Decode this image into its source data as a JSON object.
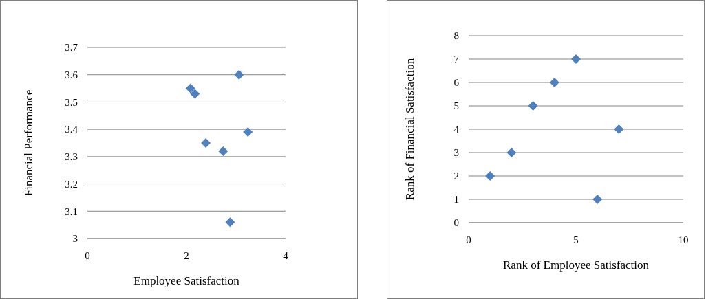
{
  "chart_data": [
    {
      "type": "scatter",
      "xlabel": "Employee Satisfaction",
      "ylabel": "Financial Performance",
      "x": [
        2.08,
        2.17,
        3.06,
        2.39,
        3.24,
        2.74,
        2.88
      ],
      "values": [
        3.55,
        3.53,
        3.6,
        3.35,
        3.39,
        3.32,
        3.06
      ],
      "color": "#4f81bd",
      "xlim": [
        0,
        4
      ],
      "xticks": [
        0,
        2,
        4
      ],
      "ylim": [
        3,
        3.7
      ],
      "yticks": [
        3,
        3.1,
        3.2,
        3.3,
        3.4,
        3.5,
        3.6,
        3.7
      ],
      "grid": "y",
      "marker": "diamond"
    },
    {
      "type": "scatter",
      "xlabel": "Rank of Employee Satisfaction",
      "ylabel": "Rank of Financial Satisfaction",
      "x": [
        1,
        2,
        3,
        4,
        5,
        6,
        7
      ],
      "values": [
        2,
        3,
        5,
        6,
        7,
        1,
        4
      ],
      "color": "#4f81bd",
      "xlim": [
        0,
        10
      ],
      "xticks": [
        0,
        5,
        10
      ],
      "ylim": [
        0,
        8
      ],
      "yticks": [
        0,
        1,
        2,
        3,
        4,
        5,
        6,
        7,
        8
      ],
      "grid": "y",
      "marker": "diamond"
    }
  ]
}
